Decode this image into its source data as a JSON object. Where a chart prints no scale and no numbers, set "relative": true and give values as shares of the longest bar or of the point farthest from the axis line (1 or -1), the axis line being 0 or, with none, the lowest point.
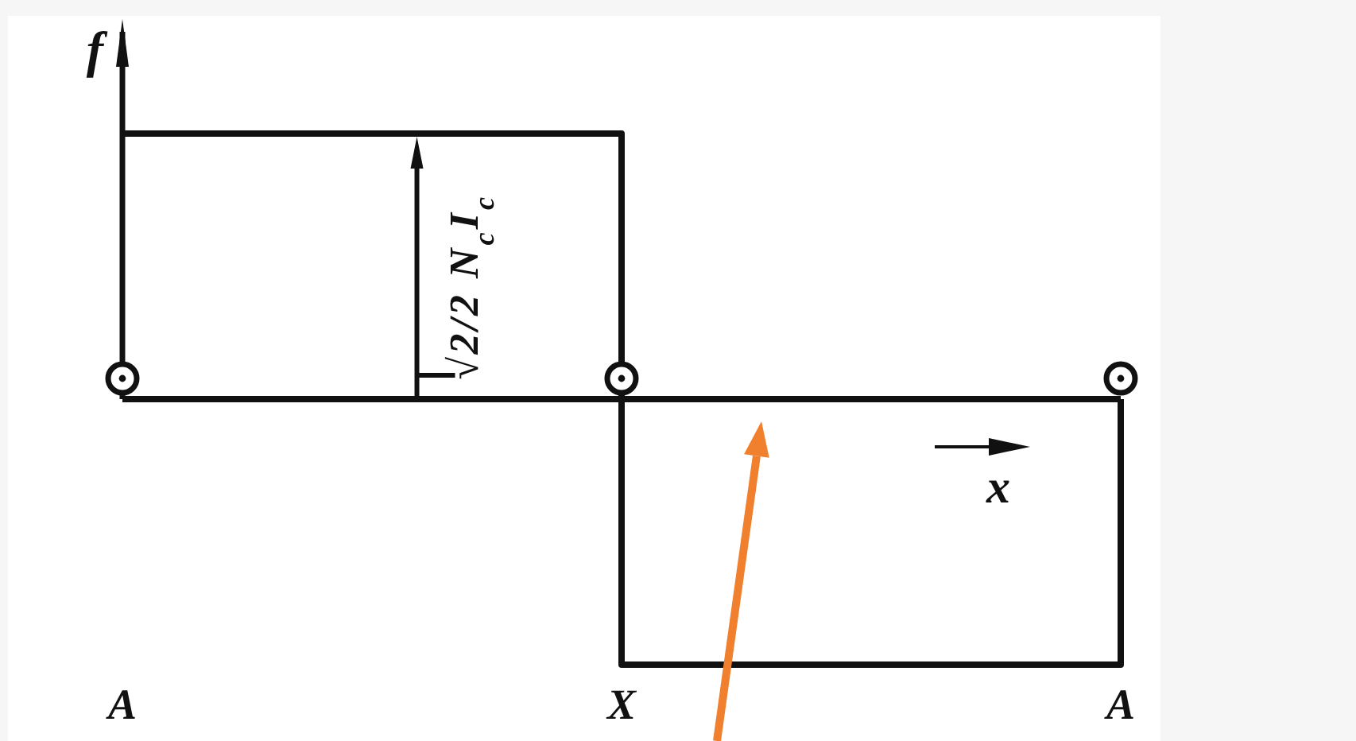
{
  "chart_data": {
    "type": "step",
    "xlabel": "x",
    "ylabel": "f",
    "categories": [
      "A",
      "X",
      "A"
    ],
    "values": [
      1,
      -1,
      0
    ],
    "relative": true,
    "annotations": [
      {
        "text": "√2/2 N$_{c}$I$_{c}$",
        "y": 1
      }
    ]
  }
}
